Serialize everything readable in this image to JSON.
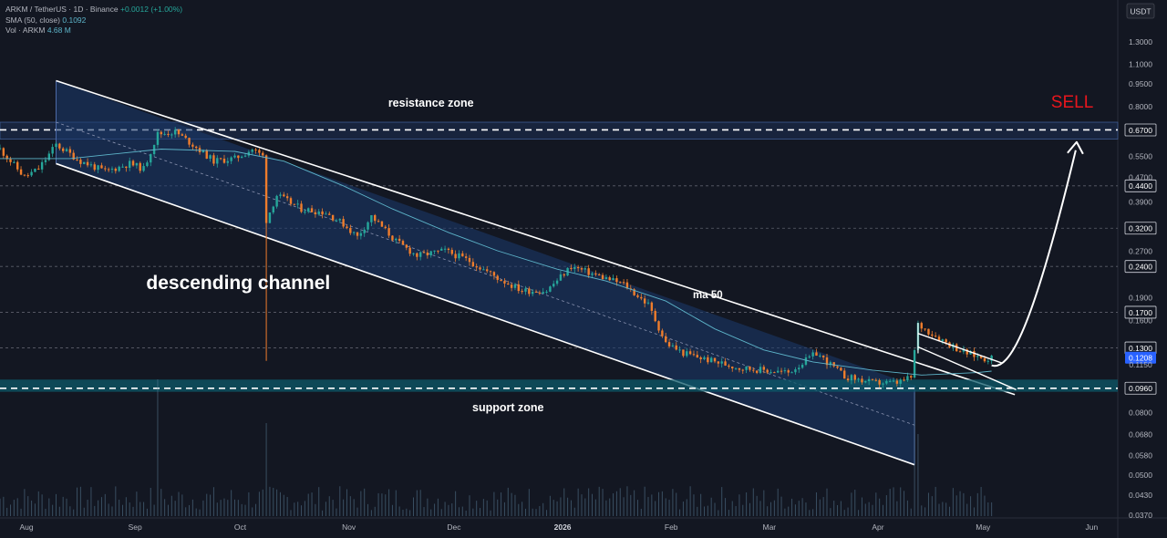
{
  "legend": {
    "symbol_line": "ARKM / TetherUS · 1D · Binance",
    "change": "+0.0012 (+1.00%)",
    "sma_label": "SMA (50, close)",
    "sma_value": "0.1092",
    "vol_label": "Vol · ARKM",
    "vol_value": "4.68 M"
  },
  "currency_badge": "USDT",
  "chart_data": {
    "type": "line",
    "title": "",
    "y_scale": "log",
    "ylim": [
      0.036,
      1.75
    ],
    "x_range": [
      "2025-07-26",
      "2026-06-10"
    ],
    "x_ticks": [
      {
        "date": "2025-08-01",
        "label": "Aug"
      },
      {
        "date": "2025-09-01",
        "label": "Sep"
      },
      {
        "date": "2025-10-01",
        "label": "Oct"
      },
      {
        "date": "2025-11-01",
        "label": "Nov"
      },
      {
        "date": "2025-12-01",
        "label": "Dec"
      },
      {
        "date": "2026-01-01",
        "label": "2026"
      },
      {
        "date": "2026-02-01",
        "label": "Feb"
      },
      {
        "date": "2026-03-01",
        "label": "Mar"
      },
      {
        "date": "2026-04-01",
        "label": "Apr"
      },
      {
        "date": "2026-05-01",
        "label": "May"
      },
      {
        "date": "2026-06-01",
        "label": "Jun"
      }
    ],
    "y_ticks": [
      "1.3000",
      "1.1000",
      "0.9500",
      "0.8000",
      "0.6700",
      "0.5500",
      "0.4700",
      "0.4400",
      "0.3900",
      "0.3200",
      "0.2700",
      "0.2400",
      "0.1900",
      "0.1700",
      "0.1600",
      "0.1300",
      "0.1208",
      "0.1150",
      "0.0960",
      "0.0800",
      "0.0680",
      "0.0580",
      "0.0500",
      "0.0430",
      "0.0370"
    ],
    "highlighted_ticks": [
      "0.6700",
      "0.4400",
      "0.3200",
      "0.2400",
      "0.1700",
      "0.1300",
      "0.0960"
    ],
    "current_price": "0.1208",
    "price_series": [
      {
        "date": "2025-07-26",
        "value": 0.58
      },
      {
        "date": "2025-08-02",
        "value": 0.47
      },
      {
        "date": "2025-08-06",
        "value": 0.5
      },
      {
        "date": "2025-08-11",
        "value": 0.6
      },
      {
        "date": "2025-08-18",
        "value": 0.53
      },
      {
        "date": "2025-08-25",
        "value": 0.49
      },
      {
        "date": "2025-09-01",
        "value": 0.52
      },
      {
        "date": "2025-09-05",
        "value": 0.5
      },
      {
        "date": "2025-09-09",
        "value": 0.65
      },
      {
        "date": "2025-09-14",
        "value": 0.66
      },
      {
        "date": "2025-09-19",
        "value": 0.6
      },
      {
        "date": "2025-09-25",
        "value": 0.53
      },
      {
        "date": "2025-10-01",
        "value": 0.54
      },
      {
        "date": "2025-10-06",
        "value": 0.58
      },
      {
        "date": "2025-10-09",
        "value": 0.55
      },
      {
        "date": "2025-10-10",
        "value": 0.34
      },
      {
        "date": "2025-10-13",
        "value": 0.41
      },
      {
        "date": "2025-10-20",
        "value": 0.37
      },
      {
        "date": "2025-10-27",
        "value": 0.36
      },
      {
        "date": "2025-11-01",
        "value": 0.33
      },
      {
        "date": "2025-11-05",
        "value": 0.3
      },
      {
        "date": "2025-11-09",
        "value": 0.35
      },
      {
        "date": "2025-11-16",
        "value": 0.29
      },
      {
        "date": "2025-11-22",
        "value": 0.26
      },
      {
        "date": "2025-11-30",
        "value": 0.27
      },
      {
        "date": "2025-12-07",
        "value": 0.25
      },
      {
        "date": "2025-12-15",
        "value": 0.22
      },
      {
        "date": "2025-12-22",
        "value": 0.2
      },
      {
        "date": "2025-12-29",
        "value": 0.2
      },
      {
        "date": "2026-01-05",
        "value": 0.24
      },
      {
        "date": "2026-01-12",
        "value": 0.225
      },
      {
        "date": "2026-01-20",
        "value": 0.21
      },
      {
        "date": "2026-01-27",
        "value": 0.18
      },
      {
        "date": "2026-02-01",
        "value": 0.135
      },
      {
        "date": "2026-02-06",
        "value": 0.125
      },
      {
        "date": "2026-02-14",
        "value": 0.118
      },
      {
        "date": "2026-02-22",
        "value": 0.112
      },
      {
        "date": "2026-03-01",
        "value": 0.11
      },
      {
        "date": "2026-03-08",
        "value": 0.108
      },
      {
        "date": "2026-03-16",
        "value": 0.125
      },
      {
        "date": "2026-03-24",
        "value": 0.105
      },
      {
        "date": "2026-04-01",
        "value": 0.1
      },
      {
        "date": "2026-04-08",
        "value": 0.1
      },
      {
        "date": "2026-04-12",
        "value": 0.104
      },
      {
        "date": "2026-04-14",
        "value": 0.155
      },
      {
        "date": "2026-04-20",
        "value": 0.14
      },
      {
        "date": "2026-04-27",
        "value": 0.126
      },
      {
        "date": "2026-05-03",
        "value": 0.12
      },
      {
        "date": "2026-05-05",
        "value": 0.1208
      }
    ],
    "sma_series": [
      {
        "date": "2025-07-26",
        "value": 0.54
      },
      {
        "date": "2025-08-15",
        "value": 0.54
      },
      {
        "date": "2025-09-10",
        "value": 0.58
      },
      {
        "date": "2025-10-01",
        "value": 0.57
      },
      {
        "date": "2025-10-15",
        "value": 0.53
      },
      {
        "date": "2025-11-01",
        "value": 0.44
      },
      {
        "date": "2025-11-15",
        "value": 0.37
      },
      {
        "date": "2025-12-01",
        "value": 0.31
      },
      {
        "date": "2025-12-15",
        "value": 0.27
      },
      {
        "date": "2026-01-01",
        "value": 0.235
      },
      {
        "date": "2026-01-15",
        "value": 0.215
      },
      {
        "date": "2026-02-01",
        "value": 0.185
      },
      {
        "date": "2026-02-15",
        "value": 0.15
      },
      {
        "date": "2026-03-01",
        "value": 0.128
      },
      {
        "date": "2026-03-15",
        "value": 0.117
      },
      {
        "date": "2026-04-01",
        "value": 0.11
      },
      {
        "date": "2026-04-15",
        "value": 0.106
      },
      {
        "date": "2026-05-01",
        "value": 0.108
      },
      {
        "date": "2026-05-05",
        "value": 0.1092
      }
    ],
    "volume_spikes": [
      {
        "date": "2025-09-09",
        "value": 1.0
      },
      {
        "date": "2025-10-10",
        "value": 0.68
      },
      {
        "date": "2026-04-13",
        "value": 0.9
      },
      {
        "date": "2026-04-14",
        "value": 0.6
      }
    ],
    "annotations": [
      {
        "text": "descending channel"
      },
      {
        "text": "resistance zone"
      },
      {
        "text": "support zone"
      },
      {
        "text": "ma 50"
      },
      {
        "text": "SELL",
        "color": "#e8161d"
      }
    ],
    "resistance_zone": {
      "low": 0.625,
      "high": 0.71,
      "target": "0.6700"
    },
    "support_zone": {
      "low": 0.0935,
      "high": 0.1025,
      "level": "0.0960"
    },
    "channel": {
      "upper": [
        {
          "date": "2025-08-11",
          "value": 0.97
        },
        {
          "date": "2026-04-13",
          "value": 0.098
        }
      ],
      "lower": [
        {
          "date": "2025-08-11",
          "value": 0.52
        },
        {
          "date": "2026-04-13",
          "value": 0.054
        }
      ]
    },
    "colors": {
      "background": "#131722",
      "up": "#26a69a",
      "down": "#ef7d2c",
      "channel_fill": "#1c3a6e",
      "sma": "#5db4c9",
      "sell": "#e8161d",
      "current_price": "#2962ff"
    }
  }
}
